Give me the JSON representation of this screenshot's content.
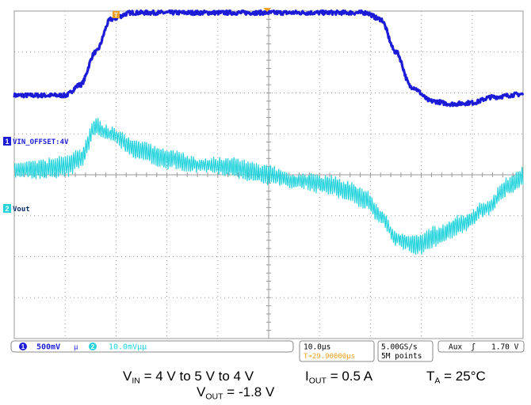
{
  "chart_data": {
    "type": "line",
    "title": "",
    "xlabel": "",
    "ylabel": "",
    "grid": true,
    "x_divisions": 10,
    "y_divisions": 8,
    "time_per_div_us": 10,
    "trigger_marker": "T",
    "series": [
      {
        "name": "VIN_OFFSET:4V",
        "channel": "1",
        "color": "#1c1cd8",
        "scale_per_div": "500mV",
        "x_div": [
          0,
          1.0,
          1.3,
          1.6,
          1.9,
          2.3,
          4.5,
          6.0,
          6.9,
          7.2,
          7.5,
          7.8,
          8.2,
          8.6,
          9.0,
          9.4,
          10
        ],
        "y_div": [
          1.94,
          1.94,
          2.2,
          3.0,
          3.8,
          3.96,
          3.96,
          3.96,
          3.96,
          3.8,
          3.0,
          2.15,
          1.8,
          1.73,
          1.76,
          1.9,
          1.97
        ],
        "noise_div": 0.05
      },
      {
        "name": "Vout",
        "channel": "2",
        "color": "#22d3dc",
        "scale_per_div": "10.0mV",
        "x_div": [
          0,
          0.5,
          1.0,
          1.3,
          1.6,
          1.9,
          2.4,
          3.0,
          3.6,
          4.2,
          5.0,
          5.6,
          6.2,
          6.6,
          6.9,
          7.2,
          7.5,
          7.9,
          8.3,
          8.8,
          9.3,
          9.7,
          10
        ],
        "y_div": [
          0.1,
          0.14,
          0.2,
          0.4,
          1.18,
          1.0,
          0.62,
          0.4,
          0.25,
          0.2,
          0.0,
          -0.15,
          -0.25,
          -0.4,
          -0.6,
          -1.0,
          -1.55,
          -1.72,
          -1.5,
          -1.2,
          -0.8,
          -0.3,
          -0.05
        ],
        "ripple_div": 0.32
      }
    ]
  },
  "traces": {
    "ch1_label": "VIN_OFFSET:4V",
    "ch1_num": "1",
    "ch2_label": "Vout",
    "ch2_num": "2",
    "trigger_marker": "T"
  },
  "status_bar": {
    "ch1_num": "1",
    "ch1_scale": "500mV",
    "bw_symbol": "µ",
    "ch2_num": "2",
    "ch2_scale": "10.0mVµµ",
    "timebase": "10.0µs",
    "trigger_position": "T➔29.90000µs",
    "sample_rate": "5.00GS/s",
    "record_length": "5M points",
    "trigger_source": "Aux",
    "trigger_slope": "ʃ",
    "trigger_level": "1.70 V"
  },
  "caption": {
    "vin_label": "V",
    "vin_sub": "IN",
    "vin_value": " = 4 V to 5 V to 4 V",
    "iout_label": "I",
    "iout_sub": "OUT",
    "iout_value": " = 0.5 A",
    "ta_label": "T",
    "ta_sub": "A",
    "ta_value": " = 25°C",
    "vout_label": "V",
    "vout_sub": "OUT",
    "vout_value": " = -1.8 V"
  },
  "colors": {
    "ch1": "#1c1cd8",
    "ch2": "#22d3dc",
    "trigger": "#f0a020",
    "grid": "#9a9a9a"
  }
}
